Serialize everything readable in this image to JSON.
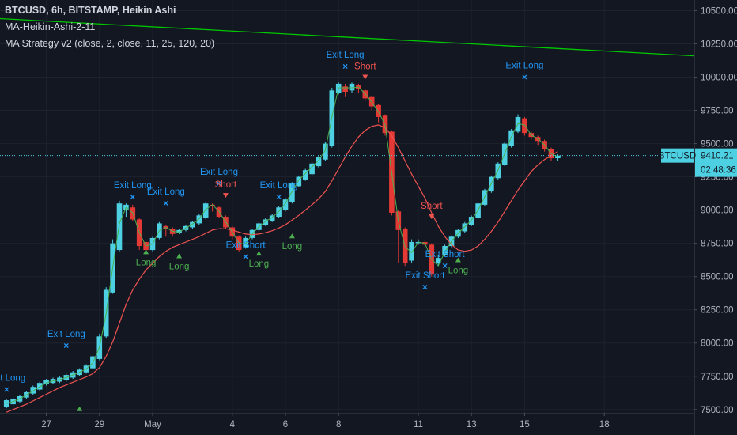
{
  "legend": {
    "line1": "BTCUSD, 6h, BITSTAMP, Heikin Ashi",
    "line2": "MA-Heikin-Ashi-2-11",
    "line3": "MA Strategy v2 (close, 2, close, 11, 25, 120, 20)"
  },
  "colors": {
    "background": "#131722",
    "up": "#4dd0e1",
    "down": "#e53935",
    "ma_fast": "#4caf50",
    "ma_slow": "#ef5350",
    "ma_long": "#00c800",
    "long_label": "#4caf50",
    "exit_label": "#2196f3",
    "short_label": "#ef5350",
    "axis_text": "#b2b5be",
    "price_tag": "#4dd0e1"
  },
  "price_tag": {
    "symbol": "BTCUSD",
    "price": "9410.21",
    "countdown": "02:48:36"
  },
  "chart_data": {
    "type": "candlestick",
    "chart_style": "Heikin Ashi",
    "symbol": "BTCUSD",
    "interval": "6h",
    "exchange": "BITSTAMP",
    "ylim": [
      7475,
      10580
    ],
    "y_ticks": [
      "10500.00",
      "10250.00",
      "10000.00",
      "9750.00",
      "9500.00",
      "9250.00",
      "9000.00",
      "8750.00",
      "8500.00",
      "8250.00",
      "8000.00",
      "7750.00",
      "7500.00"
    ],
    "y_tick_values": [
      10500,
      10250,
      10000,
      9750,
      9500,
      9250,
      9000,
      8750,
      8500,
      8250,
      8000,
      7750,
      7500
    ],
    "x_ticks": [
      "27",
      "29",
      "May",
      "4",
      "6",
      "8",
      "11",
      "13",
      "15",
      "18"
    ],
    "x_tick_candle_index": [
      6,
      14,
      22,
      34,
      42,
      50,
      62,
      70,
      78,
      90
    ],
    "candles": [
      [
        7520,
        7570,
        7510,
        7580
      ],
      [
        7540,
        7580,
        7530,
        7590
      ],
      [
        7560,
        7600,
        7550,
        7610
      ],
      [
        7590,
        7630,
        7580,
        7640
      ],
      [
        7620,
        7670,
        7610,
        7680
      ],
      [
        7650,
        7700,
        7640,
        7710
      ],
      [
        7690,
        7720,
        7680,
        7730
      ],
      [
        7700,
        7730,
        7690,
        7740
      ],
      [
        7710,
        7740,
        7700,
        7750
      ],
      [
        7720,
        7760,
        7710,
        7770
      ],
      [
        7740,
        7780,
        7730,
        7790
      ],
      [
        7760,
        7800,
        7750,
        7810
      ],
      [
        7780,
        7830,
        7770,
        7840
      ],
      [
        7810,
        7900,
        7800,
        7910
      ],
      [
        7880,
        8050,
        7870,
        8070
      ],
      [
        8050,
        8400,
        8040,
        8420
      ],
      [
        8380,
        8750,
        8370,
        8780
      ],
      [
        8700,
        9050,
        8690,
        9070
      ],
      [
        9000,
        9040,
        8950,
        9050
      ],
      [
        9020,
        8930,
        8920,
        9040
      ],
      [
        8930,
        8730,
        8700,
        8940
      ],
      [
        8760,
        8700,
        8670,
        8770
      ],
      [
        8700,
        8790,
        8690,
        8800
      ],
      [
        8790,
        8900,
        8780,
        8910
      ],
      [
        8880,
        8860,
        8800,
        8890
      ],
      [
        8860,
        8820,
        8800,
        8870
      ],
      [
        8830,
        8850,
        8820,
        8860
      ],
      [
        8850,
        8880,
        8840,
        8890
      ],
      [
        8870,
        8910,
        8860,
        8920
      ],
      [
        8900,
        8960,
        8890,
        8970
      ],
      [
        8940,
        9050,
        8930,
        9060
      ],
      [
        9040,
        9030,
        8990,
        9050
      ],
      [
        9020,
        8950,
        8940,
        9030
      ],
      [
        8950,
        8870,
        8860,
        8960
      ],
      [
        8870,
        8800,
        8780,
        8880
      ],
      [
        8800,
        8700,
        8690,
        8810
      ],
      [
        8720,
        8790,
        8710,
        8800
      ],
      [
        8790,
        8850,
        8780,
        8860
      ],
      [
        8850,
        8900,
        8840,
        8910
      ],
      [
        8890,
        8930,
        8880,
        8940
      ],
      [
        8920,
        8960,
        8910,
        8970
      ],
      [
        8950,
        9020,
        8940,
        9030
      ],
      [
        9000,
        9080,
        8990,
        9090
      ],
      [
        9060,
        9200,
        9050,
        9210
      ],
      [
        9180,
        9250,
        9170,
        9260
      ],
      [
        9230,
        9300,
        9220,
        9310
      ],
      [
        9270,
        9350,
        9260,
        9360
      ],
      [
        9330,
        9400,
        9320,
        9410
      ],
      [
        9380,
        9500,
        9370,
        9510
      ],
      [
        9480,
        9900,
        9470,
        9920
      ],
      [
        9880,
        9950,
        9870,
        9960
      ],
      [
        9930,
        9890,
        9850,
        9950
      ],
      [
        9900,
        9950,
        9880,
        9960
      ],
      [
        9940,
        9910,
        9880,
        9950
      ],
      [
        9900,
        9840,
        9820,
        9910
      ],
      [
        9850,
        9780,
        9750,
        9860
      ],
      [
        9790,
        9700,
        9660,
        9800
      ],
      [
        9710,
        9580,
        9560,
        9720
      ],
      [
        9590,
        8980,
        8960,
        9600
      ],
      [
        8990,
        8850,
        8600,
        9000
      ],
      [
        8860,
        8600,
        8580,
        8870
      ],
      [
        8620,
        8760,
        8600,
        8780
      ],
      [
        8760,
        8760,
        8740,
        8780
      ],
      [
        8760,
        8740,
        8720,
        8770
      ],
      [
        8740,
        8520,
        8500,
        8750
      ],
      [
        8600,
        8640,
        8580,
        8660
      ],
      [
        8660,
        8730,
        8650,
        8740
      ],
      [
        8730,
        8800,
        8720,
        8810
      ],
      [
        8800,
        8850,
        8790,
        8860
      ],
      [
        8840,
        8900,
        8830,
        8910
      ],
      [
        8890,
        8950,
        8880,
        8960
      ],
      [
        8940,
        9050,
        8930,
        9060
      ],
      [
        9040,
        9150,
        9030,
        9160
      ],
      [
        9140,
        9250,
        9130,
        9260
      ],
      [
        9240,
        9350,
        9230,
        9360
      ],
      [
        9340,
        9500,
        9330,
        9510
      ],
      [
        9480,
        9600,
        9470,
        9610
      ],
      [
        9590,
        9700,
        9580,
        9720
      ],
      [
        9690,
        9580,
        9560,
        9700
      ],
      [
        9580,
        9550,
        9530,
        9590
      ],
      [
        9550,
        9520,
        9490,
        9560
      ],
      [
        9520,
        9460,
        9440,
        9530
      ],
      [
        9460,
        9390,
        9370,
        9470
      ],
      [
        9390,
        9410,
        9370,
        9420
      ]
    ],
    "ma_fast": [
      7545,
      7560,
      7580,
      7610,
      7640,
      7670,
      7700,
      7715,
      7725,
      7740,
      7760,
      7780,
      7805,
      7850,
      7970,
      8220,
      8570,
      8900,
      9020,
      8980,
      8830,
      8730,
      8745,
      8845,
      8870,
      8840,
      8835,
      8865,
      8895,
      8935,
      9005,
      9040,
      8990,
      8910,
      8835,
      8750,
      8745,
      8820,
      8875,
      8915,
      8945,
      8990,
      9050,
      9140,
      9225,
      9275,
      9325,
      9375,
      9450,
      9700,
      9920,
      9920,
      9920,
      9925,
      9875,
      9810,
      9740,
      9640,
      9280,
      8915,
      8725,
      8680,
      8760,
      8750,
      8630,
      8580,
      8685,
      8765,
      8825,
      8875,
      8925,
      9000,
      9100,
      9200,
      9300,
      9425,
      9550,
      9650,
      9640,
      9565,
      9535,
      9490,
      9425,
      9400
    ],
    "ma_slow": [
      7480,
      7500,
      7520,
      7540,
      7565,
      7590,
      7615,
      7640,
      7665,
      7685,
      7705,
      7725,
      7745,
      7770,
      7815,
      7900,
      8010,
      8150,
      8290,
      8400,
      8480,
      8550,
      8600,
      8650,
      8690,
      8720,
      8740,
      8760,
      8780,
      8800,
      8825,
      8850,
      8860,
      8860,
      8850,
      8835,
      8820,
      8815,
      8820,
      8830,
      8845,
      8865,
      8890,
      8925,
      8960,
      9000,
      9040,
      9085,
      9140,
      9220,
      9310,
      9400,
      9480,
      9550,
      9600,
      9630,
      9640,
      9620,
      9560,
      9470,
      9370,
      9270,
      9180,
      9090,
      8980,
      8880,
      8800,
      8740,
      8700,
      8690,
      8700,
      8730,
      8780,
      8840,
      8910,
      8990,
      9070,
      9150,
      9220,
      9290,
      9340,
      9380,
      9410,
      9440
    ],
    "ma_long": {
      "start": 10440,
      "end": 10160
    },
    "current_price": 9410.21,
    "signals": [
      {
        "label": "Exit Long",
        "type": "exit",
        "index": 0,
        "price": 7650
      },
      {
        "label": "Exit Long",
        "type": "exit",
        "index": 9,
        "price": 7980
      },
      {
        "label": "Long",
        "type": "long",
        "index": 11,
        "price": 7500
      },
      {
        "label": "Exit Long",
        "type": "exit",
        "index": 19,
        "price": 9100
      },
      {
        "label": "Exit Long",
        "type": "exit",
        "index": 24,
        "price": 9050
      },
      {
        "label": "Long",
        "type": "long",
        "index": 21,
        "price": 8680
      },
      {
        "label": "Long",
        "type": "long",
        "index": 26,
        "price": 8650
      },
      {
        "label": "Exit Long",
        "type": "exit",
        "index": 32,
        "price": 9200
      },
      {
        "label": "Short",
        "type": "short",
        "index": 33,
        "price": 9110
      },
      {
        "label": "Exit Short",
        "type": "exit",
        "index": 36,
        "price": 8650
      },
      {
        "label": "Long",
        "type": "long",
        "index": 38,
        "price": 8670
      },
      {
        "label": "Exit Long",
        "type": "exit",
        "index": 41,
        "price": 9100
      },
      {
        "label": "Long",
        "type": "long",
        "index": 43,
        "price": 8800
      },
      {
        "label": "Exit Long",
        "type": "exit",
        "index": 51,
        "price": 10080
      },
      {
        "label": "Short",
        "type": "short",
        "index": 54,
        "price": 10000
      },
      {
        "label": "Short",
        "type": "short",
        "index": 64,
        "price": 8950
      },
      {
        "label": "Exit Short",
        "type": "exit",
        "index": 63,
        "price": 8420
      },
      {
        "label": "Exit Short",
        "type": "exit",
        "index": 66,
        "price": 8580
      },
      {
        "label": "Long",
        "type": "long",
        "index": 68,
        "price": 8620
      },
      {
        "label": "Exit Long",
        "type": "exit",
        "index": 78,
        "price": 10000
      }
    ]
  }
}
